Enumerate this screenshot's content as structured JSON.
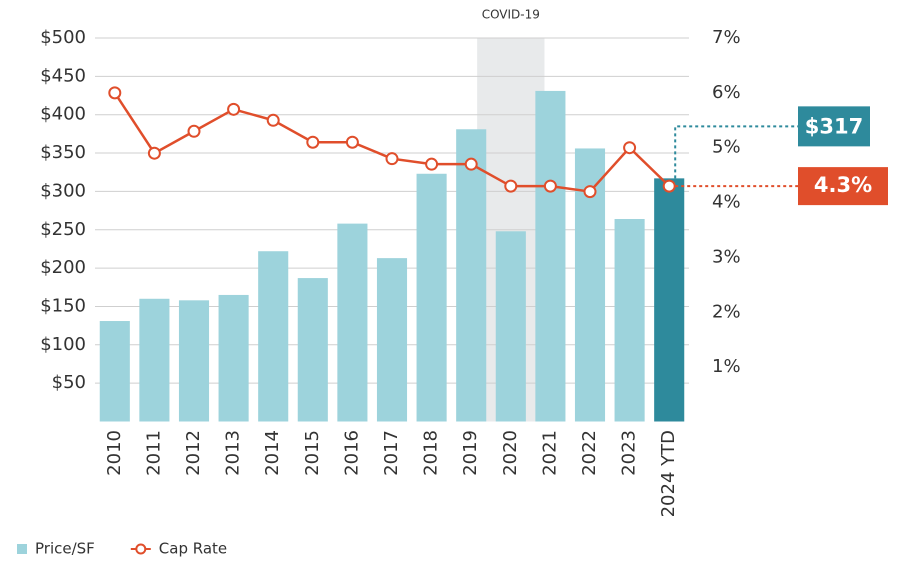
{
  "chart_data": {
    "type": "bar-line",
    "categories": [
      "2010",
      "2011",
      "2012",
      "2013",
      "2014",
      "2015",
      "2016",
      "2017",
      "2018",
      "2019",
      "2020",
      "2021",
      "2022",
      "2023",
      "2024 YTD"
    ],
    "series": [
      {
        "name": "Price/SF",
        "type": "bar",
        "color": "#9dd3dc",
        "highlight_color": "#2e8a9c",
        "values": [
          131,
          160,
          158,
          165,
          222,
          187,
          258,
          213,
          323,
          381,
          248,
          431,
          356,
          264,
          317
        ],
        "value_labels": [
          null,
          null,
          null,
          null,
          null,
          null,
          null,
          null,
          null,
          null,
          null,
          null,
          null,
          null,
          "$317"
        ]
      },
      {
        "name": "Cap Rate",
        "type": "line",
        "axis": "y2",
        "color": "#e04e2b",
        "values": [
          6.0,
          4.9,
          5.3,
          5.7,
          5.5,
          5.1,
          5.1,
          4.8,
          4.7,
          4.7,
          4.3,
          4.3,
          4.2,
          5.0,
          4.3
        ],
        "value_labels": [
          null,
          null,
          null,
          null,
          null,
          null,
          null,
          null,
          null,
          null,
          null,
          null,
          null,
          null,
          "4.3%"
        ]
      }
    ],
    "ylim": [
      0,
      500
    ],
    "yticks": [
      {
        "value": 50,
        "label": "$50"
      },
      {
        "value": 100,
        "label": "$100"
      },
      {
        "value": 150,
        "label": "$150"
      },
      {
        "value": 200,
        "label": "$200"
      },
      {
        "value": 250,
        "label": "$250"
      },
      {
        "value": 300,
        "label": "$300"
      },
      {
        "value": 350,
        "label": "$350"
      },
      {
        "value": 400,
        "label": "$400"
      },
      {
        "value": 450,
        "label": "$450"
      },
      {
        "value": 500,
        "label": "$500"
      }
    ],
    "y2lim": [
      0,
      7
    ],
    "y2ticks": [
      {
        "value": 1,
        "label": "1%"
      },
      {
        "value": 2,
        "label": "2%"
      },
      {
        "value": 3,
        "label": "3%"
      },
      {
        "value": 4,
        "label": "4%"
      },
      {
        "value": 5,
        "label": "5%"
      },
      {
        "value": 6,
        "label": "6%"
      },
      {
        "value": 7,
        "label": "7%"
      }
    ],
    "grid": true,
    "annotations": [
      {
        "label": "COVID-19",
        "x": "2020"
      }
    ],
    "legend": "bottom-left"
  }
}
